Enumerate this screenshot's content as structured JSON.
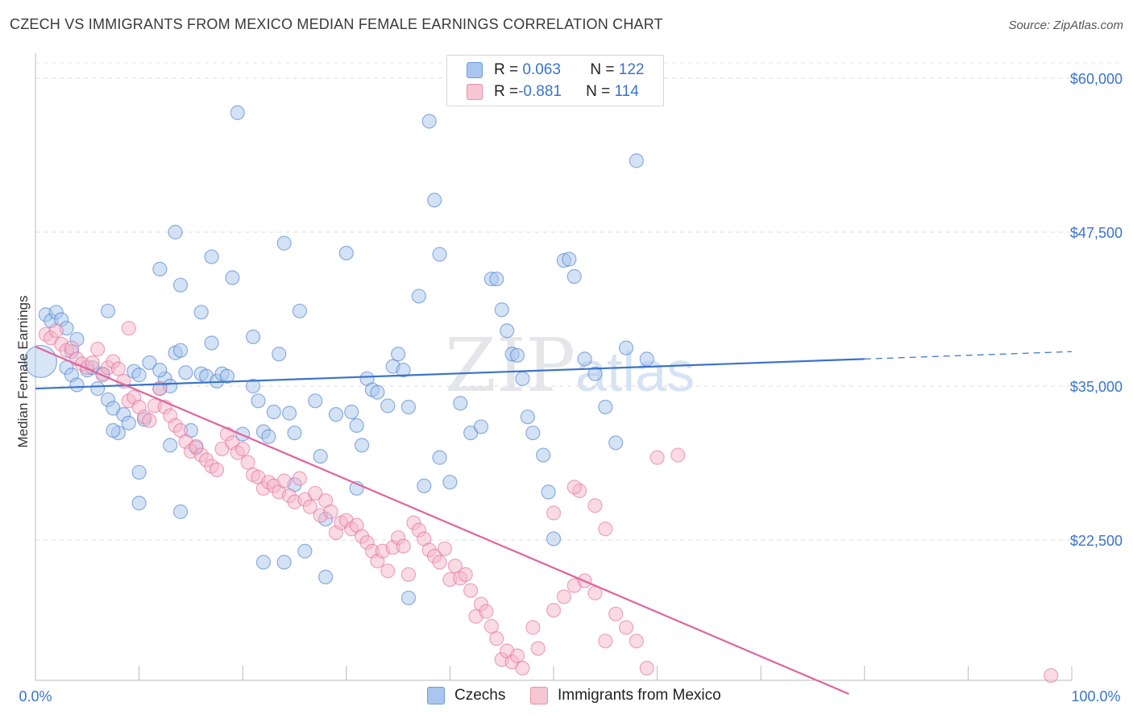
{
  "header": {
    "title": "CZECH VS IMMIGRANTS FROM MEXICO MEDIAN FEMALE EARNINGS CORRELATION CHART",
    "source": "Source: ZipAtlas.com"
  },
  "watermark": {
    "zip": "ZIP",
    "atlas": "atlas"
  },
  "legend": {
    "rows": [
      {
        "r_label": "R = ",
        "r_value": "0.063",
        "n_label": "N = ",
        "n_value": "122",
        "color": "#a9c6ee"
      },
      {
        "r_label": "R = ",
        "r_value": "-0.881",
        "n_label": "N = ",
        "n_value": "114",
        "color": "#f6b6c8"
      }
    ]
  },
  "bottom_legend": [
    {
      "label": "Czechs",
      "color": "#a9c6ee"
    },
    {
      "label": "Immigrants from Mexico",
      "color": "#f6b6c8"
    }
  ],
  "chart_data": {
    "type": "scatter",
    "title": "CZECH VS IMMIGRANTS FROM MEXICO MEDIAN FEMALE EARNINGS CORRELATION CHART",
    "xlabel": "",
    "ylabel": "Median Female Earnings",
    "xlim": [
      0,
      100
    ],
    "ylim": [
      10000,
      62000
    ],
    "x_tick_labels": [
      "0.0%",
      "100.0%"
    ],
    "y_ticks": [
      22500,
      35000,
      47500,
      60000
    ],
    "y_tick_labels": [
      "$22,500",
      "$35,000",
      "$47,500",
      "$60,000"
    ],
    "grid": true,
    "series": [
      {
        "name": "Czechs",
        "color": "#3a74c9",
        "fill": "#a9c6ee",
        "trend": {
          "x0": 0,
          "y0": 34800,
          "x1": 80,
          "y1": 37200,
          "dash_to_x": 100,
          "dash_to_y": 37800
        },
        "points": [
          [
            0.5,
            37000
          ],
          [
            1,
            40800
          ],
          [
            1.5,
            40300
          ],
          [
            2,
            41000
          ],
          [
            2.5,
            40400
          ],
          [
            3,
            39700
          ],
          [
            3.5,
            37800
          ],
          [
            3,
            36500
          ],
          [
            4,
            38800
          ],
          [
            3.5,
            35900
          ],
          [
            4,
            35100
          ],
          [
            5,
            36300
          ],
          [
            5.5,
            36500
          ],
          [
            6,
            34800
          ],
          [
            6.5,
            36000
          ],
          [
            7,
            33900
          ],
          [
            7.5,
            33200
          ],
          [
            8,
            31200
          ],
          [
            7.5,
            31400
          ],
          [
            8.5,
            32700
          ],
          [
            9,
            32000
          ],
          [
            9.5,
            36200
          ],
          [
            10,
            35900
          ],
          [
            10.5,
            32300
          ],
          [
            11,
            36900
          ],
          [
            12,
            34800
          ],
          [
            12.5,
            35600
          ],
          [
            12,
            36300
          ],
          [
            13,
            35000
          ],
          [
            13.5,
            37700
          ],
          [
            14,
            37900
          ],
          [
            14.5,
            36100
          ],
          [
            15,
            31400
          ],
          [
            15.5,
            30000
          ],
          [
            16,
            36000
          ],
          [
            16.5,
            35800
          ],
          [
            17,
            38500
          ],
          [
            17.5,
            35400
          ],
          [
            18,
            36000
          ],
          [
            18.5,
            35800
          ],
          [
            10,
            28000
          ],
          [
            10,
            25500
          ],
          [
            13,
            30200
          ],
          [
            14,
            24800
          ],
          [
            12,
            44500
          ],
          [
            14,
            43200
          ],
          [
            13.5,
            47500
          ],
          [
            16,
            41000
          ],
          [
            17,
            45500
          ],
          [
            19,
            43800
          ],
          [
            19.5,
            57200
          ],
          [
            21,
            39000
          ],
          [
            21.5,
            33800
          ],
          [
            22,
            31300
          ],
          [
            22.5,
            30900
          ],
          [
            23,
            32900
          ],
          [
            23.5,
            37600
          ],
          [
            24,
            46600
          ],
          [
            24.5,
            32800
          ],
          [
            25,
            31200
          ],
          [
            25.5,
            41100
          ],
          [
            25,
            27000
          ],
          [
            24,
            20700
          ],
          [
            27,
            33800
          ],
          [
            27.5,
            29300
          ],
          [
            28,
            24200
          ],
          [
            28,
            19500
          ],
          [
            29,
            32700
          ],
          [
            30,
            45800
          ],
          [
            30.5,
            32900
          ],
          [
            31,
            31800
          ],
          [
            31.5,
            30200
          ],
          [
            32,
            35600
          ],
          [
            32.5,
            34700
          ],
          [
            33,
            34500
          ],
          [
            34,
            33400
          ],
          [
            34.5,
            36600
          ],
          [
            35,
            37600
          ],
          [
            35.5,
            36300
          ],
          [
            36,
            33300
          ],
          [
            37,
            42300
          ],
          [
            37.5,
            26900
          ],
          [
            38,
            56500
          ],
          [
            38.5,
            50100
          ],
          [
            39,
            45700
          ],
          [
            36,
            17800
          ],
          [
            39,
            29200
          ],
          [
            40,
            27200
          ],
          [
            41,
            33600
          ],
          [
            42,
            31200
          ],
          [
            43,
            31700
          ],
          [
            44,
            43700
          ],
          [
            44.5,
            43700
          ],
          [
            45,
            41200
          ],
          [
            45.5,
            39500
          ],
          [
            46,
            37600
          ],
          [
            46.5,
            37500
          ],
          [
            47,
            35600
          ],
          [
            47.5,
            32500
          ],
          [
            48,
            31200
          ],
          [
            49,
            29400
          ],
          [
            49.5,
            26400
          ],
          [
            50,
            22600
          ],
          [
            51,
            45200
          ],
          [
            51.5,
            45300
          ],
          [
            52,
            43900
          ],
          [
            53,
            37200
          ],
          [
            54,
            36000
          ],
          [
            55,
            33300
          ],
          [
            56,
            30400
          ],
          [
            57,
            38100
          ],
          [
            58,
            53300
          ],
          [
            59,
            37200
          ],
          [
            20,
            31100
          ],
          [
            21,
            35000
          ],
          [
            22,
            20700
          ],
          [
            26,
            21600
          ],
          [
            31,
            26700
          ],
          [
            7,
            41100
          ]
        ]
      },
      {
        "name": "Immigrants from Mexico",
        "color": "#e0649b",
        "fill": "#f6b6c8",
        "trend": {
          "x0": 0,
          "y0": 38200,
          "x1": 78.5,
          "y1": 10000
        },
        "points": [
          [
            1,
            39200
          ],
          [
            1.5,
            38900
          ],
          [
            2,
            39500
          ],
          [
            2.5,
            38400
          ],
          [
            3,
            37900
          ],
          [
            3.5,
            38100
          ],
          [
            4,
            37200
          ],
          [
            4.5,
            36800
          ],
          [
            5,
            36500
          ],
          [
            5.5,
            36900
          ],
          [
            6,
            38000
          ],
          [
            6.5,
            35900
          ],
          [
            7,
            36500
          ],
          [
            7.5,
            37000
          ],
          [
            8,
            36400
          ],
          [
            8.5,
            35400
          ],
          [
            9,
            33800
          ],
          [
            9.5,
            34100
          ],
          [
            10,
            33300
          ],
          [
            10.5,
            32500
          ],
          [
            11,
            32200
          ],
          [
            11.5,
            33400
          ],
          [
            12,
            34800
          ],
          [
            12.5,
            33300
          ],
          [
            13,
            32600
          ],
          [
            13.5,
            31800
          ],
          [
            14,
            31400
          ],
          [
            14.5,
            30500
          ],
          [
            15,
            29700
          ],
          [
            15.5,
            30100
          ],
          [
            16,
            29400
          ],
          [
            16.5,
            29000
          ],
          [
            17,
            28500
          ],
          [
            17.5,
            28200
          ],
          [
            18,
            29900
          ],
          [
            18.5,
            31100
          ],
          [
            19,
            30400
          ],
          [
            19.5,
            29600
          ],
          [
            20,
            29900
          ],
          [
            20.5,
            28800
          ],
          [
            21,
            27800
          ],
          [
            21.5,
            27600
          ],
          [
            22,
            26700
          ],
          [
            22.5,
            27200
          ],
          [
            23,
            26900
          ],
          [
            23.5,
            26400
          ],
          [
            24,
            27300
          ],
          [
            24.5,
            26100
          ],
          [
            25,
            25600
          ],
          [
            25.5,
            27500
          ],
          [
            26,
            25800
          ],
          [
            26.5,
            25200
          ],
          [
            27,
            26300
          ],
          [
            27.5,
            24500
          ],
          [
            28,
            25700
          ],
          [
            28.5,
            24800
          ],
          [
            29,
            23100
          ],
          [
            29.5,
            23900
          ],
          [
            30,
            24100
          ],
          [
            30.5,
            23400
          ],
          [
            31,
            23700
          ],
          [
            31.5,
            22800
          ],
          [
            32,
            22300
          ],
          [
            32.5,
            21600
          ],
          [
            33,
            20800
          ],
          [
            33.5,
            21600
          ],
          [
            34,
            20000
          ],
          [
            34.5,
            21900
          ],
          [
            35,
            22700
          ],
          [
            35.5,
            22000
          ],
          [
            36,
            19700
          ],
          [
            36.5,
            23900
          ],
          [
            37,
            23300
          ],
          [
            37.5,
            22600
          ],
          [
            38,
            21700
          ],
          [
            38.5,
            21200
          ],
          [
            39,
            20700
          ],
          [
            39.5,
            21800
          ],
          [
            40,
            19300
          ],
          [
            40.5,
            20400
          ],
          [
            41,
            19400
          ],
          [
            41.5,
            19700
          ],
          [
            42,
            18400
          ],
          [
            42.5,
            16300
          ],
          [
            43,
            17300
          ],
          [
            43.5,
            16700
          ],
          [
            44,
            15500
          ],
          [
            44.5,
            14500
          ],
          [
            45,
            12800
          ],
          [
            45.5,
            13500
          ],
          [
            46,
            12600
          ],
          [
            46.5,
            13100
          ],
          [
            47,
            12100
          ],
          [
            48,
            15400
          ],
          [
            48.5,
            13700
          ],
          [
            50,
            16800
          ],
          [
            51,
            17900
          ],
          [
            52,
            18800
          ],
          [
            53,
            19200
          ],
          [
            54,
            18200
          ],
          [
            55,
            14300
          ],
          [
            56,
            16500
          ],
          [
            57,
            15400
          ],
          [
            58,
            14300
          ],
          [
            59,
            12100
          ],
          [
            60,
            29200
          ],
          [
            62,
            29400
          ],
          [
            55,
            23400
          ],
          [
            54,
            25300
          ],
          [
            52.5,
            26500
          ],
          [
            52,
            26800
          ],
          [
            50,
            24700
          ],
          [
            98,
            11500
          ],
          [
            9,
            39700
          ]
        ]
      }
    ]
  }
}
